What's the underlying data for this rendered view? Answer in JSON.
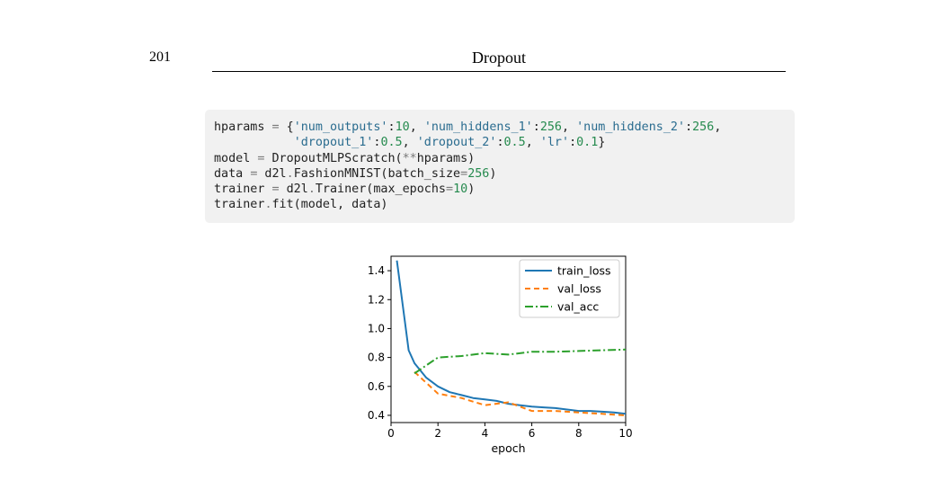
{
  "header": {
    "page_number": "201",
    "title": "Dropout"
  },
  "code": {
    "lines": [
      [
        {
          "t": "hparams ",
          "k": "plain"
        },
        {
          "t": "=",
          "k": "op"
        },
        {
          "t": " {",
          "k": "plain"
        },
        {
          "t": "'num_outputs'",
          "k": "str"
        },
        {
          "t": ":",
          "k": "plain"
        },
        {
          "t": "10",
          "k": "num"
        },
        {
          "t": ", ",
          "k": "plain"
        },
        {
          "t": "'num_hiddens_1'",
          "k": "str"
        },
        {
          "t": ":",
          "k": "plain"
        },
        {
          "t": "256",
          "k": "num"
        },
        {
          "t": ", ",
          "k": "plain"
        },
        {
          "t": "'num_hiddens_2'",
          "k": "str"
        },
        {
          "t": ":",
          "k": "plain"
        },
        {
          "t": "256",
          "k": "num"
        },
        {
          "t": ",",
          "k": "plain"
        }
      ],
      [
        {
          "t": "           ",
          "k": "plain"
        },
        {
          "t": "'dropout_1'",
          "k": "str"
        },
        {
          "t": ":",
          "k": "plain"
        },
        {
          "t": "0.5",
          "k": "num"
        },
        {
          "t": ", ",
          "k": "plain"
        },
        {
          "t": "'dropout_2'",
          "k": "str"
        },
        {
          "t": ":",
          "k": "plain"
        },
        {
          "t": "0.5",
          "k": "num"
        },
        {
          "t": ", ",
          "k": "plain"
        },
        {
          "t": "'lr'",
          "k": "str"
        },
        {
          "t": ":",
          "k": "plain"
        },
        {
          "t": "0.1",
          "k": "num"
        },
        {
          "t": "}",
          "k": "plain"
        }
      ],
      [
        {
          "t": "model ",
          "k": "plain"
        },
        {
          "t": "=",
          "k": "op"
        },
        {
          "t": " DropoutMLPScratch(",
          "k": "plain"
        },
        {
          "t": "**",
          "k": "op"
        },
        {
          "t": "hparams)",
          "k": "plain"
        }
      ],
      [
        {
          "t": "data ",
          "k": "plain"
        },
        {
          "t": "=",
          "k": "op"
        },
        {
          "t": " d2l",
          "k": "plain"
        },
        {
          "t": ".",
          "k": "op"
        },
        {
          "t": "FashionMNIST(batch_size",
          "k": "plain"
        },
        {
          "t": "=",
          "k": "op"
        },
        {
          "t": "256",
          "k": "num"
        },
        {
          "t": ")",
          "k": "plain"
        }
      ],
      [
        {
          "t": "trainer ",
          "k": "plain"
        },
        {
          "t": "=",
          "k": "op"
        },
        {
          "t": " d2l",
          "k": "plain"
        },
        {
          "t": ".",
          "k": "op"
        },
        {
          "t": "Trainer(max_epochs",
          "k": "plain"
        },
        {
          "t": "=",
          "k": "op"
        },
        {
          "t": "10",
          "k": "num"
        },
        {
          "t": ")",
          "k": "plain"
        }
      ],
      [
        {
          "t": "trainer",
          "k": "plain"
        },
        {
          "t": ".",
          "k": "op"
        },
        {
          "t": "fit(model, data)",
          "k": "plain"
        }
      ]
    ]
  },
  "chart_data": {
    "type": "line",
    "xlabel": "epoch",
    "ylabel": "",
    "xlim": [
      0,
      10
    ],
    "ylim": [
      0.35,
      1.5
    ],
    "xticks": [
      0,
      2,
      4,
      6,
      8,
      10
    ],
    "yticks": [
      0.4,
      0.6,
      0.8,
      1.0,
      1.2,
      1.4
    ],
    "xtick_labels": [
      "0",
      "2",
      "4",
      "6",
      "8",
      "10"
    ],
    "ytick_labels": [
      "0.4",
      "0.6",
      "0.8",
      "1.0",
      "1.2",
      "1.4"
    ],
    "legend_position": "top-right",
    "grid": false,
    "series": [
      {
        "name": "train_loss",
        "color": "#1f77b4",
        "dash": "solid",
        "x": [
          0.25,
          0.75,
          1,
          1.5,
          2,
          2.5,
          3,
          3.5,
          4,
          4.5,
          5,
          5.5,
          6,
          6.5,
          7,
          7.5,
          8,
          8.5,
          9,
          9.5,
          10
        ],
        "y": [
          1.47,
          0.85,
          0.76,
          0.66,
          0.6,
          0.56,
          0.54,
          0.52,
          0.51,
          0.5,
          0.48,
          0.47,
          0.46,
          0.455,
          0.45,
          0.44,
          0.43,
          0.43,
          0.425,
          0.42,
          0.41
        ]
      },
      {
        "name": "val_loss",
        "color": "#ff7f0e",
        "dash": "6,4",
        "x": [
          1,
          2,
          3,
          4,
          5,
          6,
          7,
          8,
          9,
          10
        ],
        "y": [
          0.7,
          0.55,
          0.52,
          0.47,
          0.49,
          0.43,
          0.43,
          0.42,
          0.41,
          0.4
        ]
      },
      {
        "name": "val_acc",
        "color": "#2ca02c",
        "dash": "9,3,2,3",
        "x": [
          1,
          2,
          3,
          4,
          5,
          6,
          7,
          8,
          9,
          10
        ],
        "y": [
          0.69,
          0.8,
          0.81,
          0.83,
          0.82,
          0.84,
          0.84,
          0.845,
          0.85,
          0.855
        ]
      }
    ]
  }
}
